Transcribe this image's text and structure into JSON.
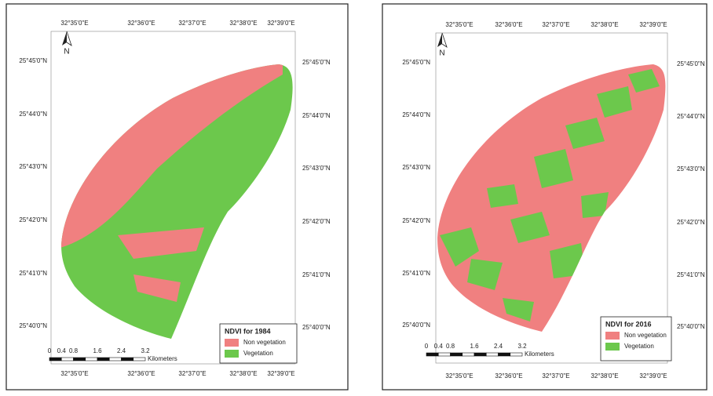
{
  "maps": [
    {
      "x_labels_top": [
        "32°35'0\"E",
        "32°36'0\"E",
        "32°37'0\"E",
        "32°38'0\"E",
        "32°39'0\"E"
      ],
      "x_labels_bottom": [
        "32°35'0\"E",
        "32°36'0\"E",
        "32°37'0\"E",
        "32°38'0\"E",
        "32°39'0\"E"
      ],
      "y_labels_left": [
        "25°45'0\"N",
        "25°44'0\"N",
        "25°43'0\"N",
        "25°42'0\"N",
        "25°41'0\"N",
        "25°40'0\"N"
      ],
      "y_labels_right": [
        "25°45'0\"N",
        "25°44'0\"N",
        "25°43'0\"N",
        "25°42'0\"N",
        "25°41'0\"N",
        "25°40'0\"N"
      ],
      "north": "N",
      "legend": {
        "title": "NDVI for 1984",
        "items": [
          {
            "label": "Non vegetation",
            "color": "#f08080"
          },
          {
            "label": "Vegetation",
            "color": "#6cc84c"
          }
        ]
      },
      "scale": {
        "ticks": [
          "0",
          "0.4",
          "0.8",
          "1.6",
          "2.4",
          "3.2"
        ],
        "unit": "Kilometers"
      }
    },
    {
      "x_labels_top": [
        "32°35'0\"E",
        "32°36'0\"E",
        "32°37'0\"E",
        "32°38'0\"E",
        "32°39'0\"E"
      ],
      "x_labels_bottom": [
        "32°35'0\"E",
        "32°36'0\"E",
        "32°37'0\"E",
        "32°38'0\"E",
        "32°39'0\"E"
      ],
      "y_labels_left": [
        "25°45'0\"N",
        "25°44'0\"N",
        "25°43'0\"N",
        "25°42'0\"N",
        "25°41'0\"N",
        "25°40'0\"N"
      ],
      "y_labels_right": [
        "25°45'0\"N",
        "25°44'0\"N",
        "25°43'0\"N",
        "25°42'0\"N",
        "25°41'0\"N",
        "25°40'0\"N"
      ],
      "north": "N",
      "legend": {
        "title": "NDVI for 2016",
        "items": [
          {
            "label": "Non vegetation",
            "color": "#f08080"
          },
          {
            "label": "Vegetation",
            "color": "#6cc84c"
          }
        ]
      },
      "scale": {
        "ticks": [
          "0",
          "0.4",
          "0.8",
          "1.6",
          "2.4",
          "3.2"
        ],
        "unit": "Kilometers"
      }
    }
  ]
}
